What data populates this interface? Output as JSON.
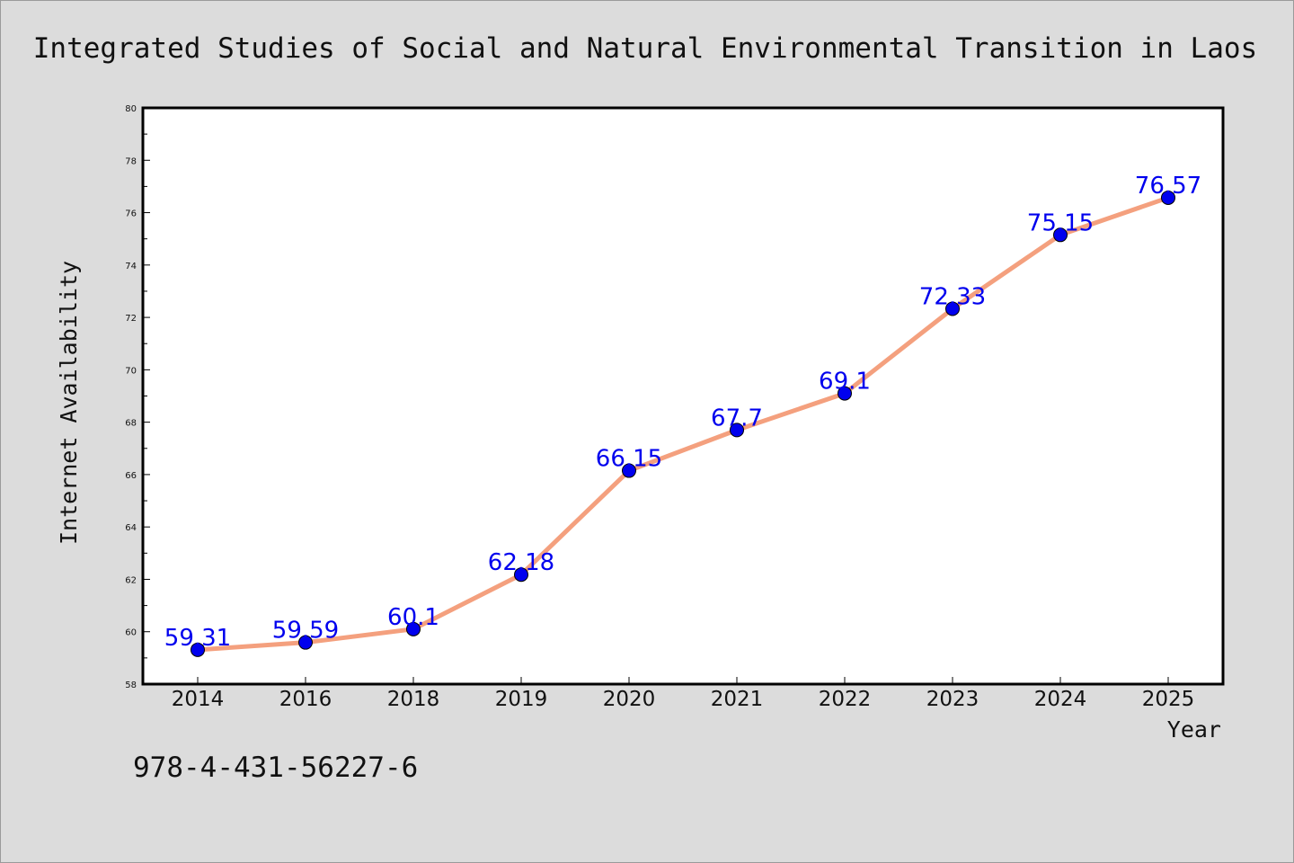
{
  "chart_data": {
    "type": "line",
    "title": "Integrated Studies of Social and Natural Environmental Transition in Laos",
    "xlabel": "Year",
    "ylabel": "Internet Availability",
    "categories": [
      "2014",
      "2016",
      "2018",
      "2019",
      "2020",
      "2021",
      "2022",
      "2023",
      "2024",
      "2025"
    ],
    "series": [
      {
        "values": [
          59.31,
          59.59,
          60.1,
          62.18,
          66.15,
          67.7,
          69.1,
          72.33,
          75.15,
          76.57
        ],
        "data_labels": [
          "59.31",
          "59.59",
          "60.1",
          "62.18",
          "66.15",
          "67.7",
          "69.1",
          "72.33",
          "75.15",
          "76.57"
        ]
      }
    ],
    "ylim": [
      58,
      80
    ],
    "yticks": [
      "58",
      "60",
      "62",
      "64",
      "66",
      "68",
      "70",
      "72",
      "74",
      "76",
      "78",
      "80"
    ],
    "grid": false,
    "line_color": "#f4a07e",
    "marker_color": "#0000ee",
    "label_color": "#0000ee",
    "plot_background": "#ffffff",
    "figure_background": "#dcdcdc"
  },
  "footer": {
    "isbn": "978-4-431-56227-6"
  }
}
